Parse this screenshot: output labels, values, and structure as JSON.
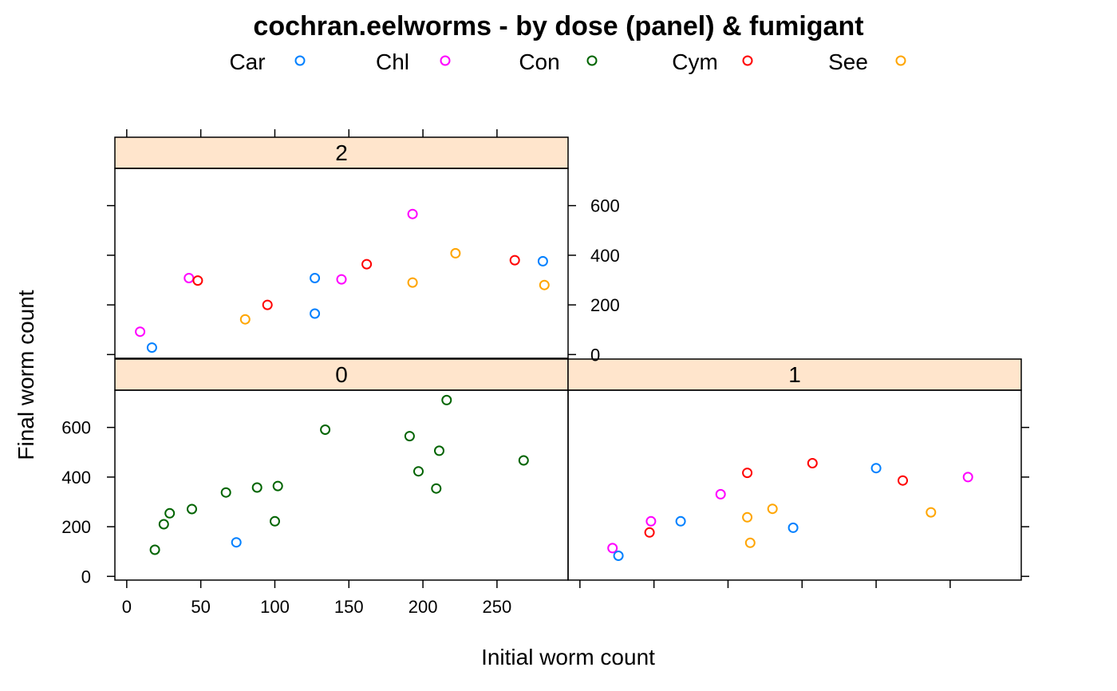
{
  "chart_data": {
    "type": "scatter",
    "title": "cochran.eelworms - by dose (panel) & fumigant",
    "xlabel": "Initial worm count",
    "ylabel": "Final worm count",
    "xlim": [
      -8,
      298
    ],
    "ylim": [
      -15,
      750
    ],
    "x_ticks": [
      0,
      50,
      100,
      150,
      200,
      250
    ],
    "y_ticks": [
      0,
      200,
      400,
      600
    ],
    "legend_position": "top",
    "strip_color": "#ffe5cc",
    "series": [
      {
        "name": "Car",
        "color": "#0080ff"
      },
      {
        "name": "Chl",
        "color": "#ff00ff"
      },
      {
        "name": "Con",
        "color": "#006400"
      },
      {
        "name": "Cym",
        "color": "#ff0000"
      },
      {
        "name": "See",
        "color": "#ffa500"
      }
    ],
    "panels": [
      {
        "label": "0",
        "points": [
          {
            "series": "Car",
            "x": 74,
            "y": 137
          },
          {
            "series": "Con",
            "x": 19,
            "y": 107
          },
          {
            "series": "Con",
            "x": 25,
            "y": 210
          },
          {
            "series": "Con",
            "x": 29,
            "y": 254
          },
          {
            "series": "Con",
            "x": 44,
            "y": 271
          },
          {
            "series": "Con",
            "x": 67,
            "y": 338
          },
          {
            "series": "Con",
            "x": 88,
            "y": 358
          },
          {
            "series": "Con",
            "x": 102,
            "y": 364
          },
          {
            "series": "Con",
            "x": 100,
            "y": 222
          },
          {
            "series": "Con",
            "x": 134,
            "y": 591
          },
          {
            "series": "Con",
            "x": 191,
            "y": 565
          },
          {
            "series": "Con",
            "x": 197,
            "y": 423
          },
          {
            "series": "Con",
            "x": 209,
            "y": 354
          },
          {
            "series": "Con",
            "x": 211,
            "y": 506
          },
          {
            "series": "Con",
            "x": 216,
            "y": 710
          },
          {
            "series": "Con",
            "x": 268,
            "y": 467
          }
        ]
      },
      {
        "label": "1",
        "points": [
          {
            "series": "Chl",
            "x": 22,
            "y": 114
          },
          {
            "series": "Car",
            "x": 26,
            "y": 83
          },
          {
            "series": "Cym",
            "x": 47,
            "y": 177
          },
          {
            "series": "Chl",
            "x": 48,
            "y": 222
          },
          {
            "series": "Car",
            "x": 68,
            "y": 222
          },
          {
            "series": "Chl",
            "x": 95,
            "y": 331
          },
          {
            "series": "Cym",
            "x": 113,
            "y": 417
          },
          {
            "series": "See",
            "x": 113,
            "y": 238
          },
          {
            "series": "See",
            "x": 115,
            "y": 135
          },
          {
            "series": "See",
            "x": 130,
            "y": 272
          },
          {
            "series": "Car",
            "x": 144,
            "y": 196
          },
          {
            "series": "Cym",
            "x": 157,
            "y": 456
          },
          {
            "series": "Car",
            "x": 200,
            "y": 436
          },
          {
            "series": "Cym",
            "x": 218,
            "y": 386
          },
          {
            "series": "See",
            "x": 237,
            "y": 258
          },
          {
            "series": "Chl",
            "x": 262,
            "y": 400
          }
        ]
      },
      {
        "label": "2",
        "points": [
          {
            "series": "Chl",
            "x": 9,
            "y": 92
          },
          {
            "series": "Car",
            "x": 17,
            "y": 28
          },
          {
            "series": "Chl",
            "x": 42,
            "y": 308
          },
          {
            "series": "Cym",
            "x": 48,
            "y": 298
          },
          {
            "series": "See",
            "x": 80,
            "y": 142
          },
          {
            "series": "Cym",
            "x": 95,
            "y": 200
          },
          {
            "series": "Car",
            "x": 127,
            "y": 308
          },
          {
            "series": "Car",
            "x": 127,
            "y": 165
          },
          {
            "series": "Chl",
            "x": 145,
            "y": 303
          },
          {
            "series": "Cym",
            "x": 162,
            "y": 364
          },
          {
            "series": "Chl",
            "x": 193,
            "y": 566
          },
          {
            "series": "See",
            "x": 193,
            "y": 290
          },
          {
            "series": "See",
            "x": 222,
            "y": 408
          },
          {
            "series": "Cym",
            "x": 262,
            "y": 380
          },
          {
            "series": "Car",
            "x": 281,
            "y": 376
          },
          {
            "series": "See",
            "x": 282,
            "y": 280
          }
        ]
      }
    ]
  }
}
